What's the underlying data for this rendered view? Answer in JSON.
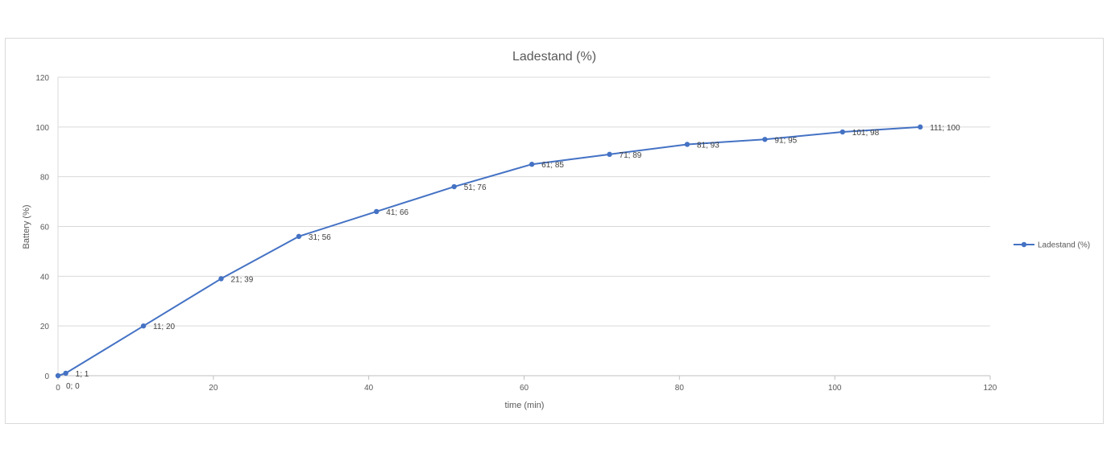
{
  "chart_data": {
    "type": "line",
    "title": "Ladestand (%)",
    "xlabel": "time (min)",
    "ylabel": "Battery (%)",
    "xlim": [
      0,
      120
    ],
    "ylim": [
      0,
      120
    ],
    "xticks": [
      0,
      20,
      40,
      60,
      80,
      100,
      120
    ],
    "yticks": [
      0,
      20,
      40,
      60,
      80,
      100,
      120
    ],
    "grid": "horizontal",
    "legend": "right",
    "series": [
      {
        "name": "Ladestand (%)",
        "color": "#4472c4",
        "x": [
          0,
          1,
          11,
          21,
          31,
          41,
          51,
          61,
          71,
          81,
          91,
          101,
          111
        ],
        "y": [
          0,
          1,
          20,
          39,
          56,
          66,
          76,
          85,
          89,
          93,
          95,
          98,
          100
        ],
        "data_labels": [
          "0; 0",
          "1; 1",
          "11; 20",
          "21; 39",
          "31; 56",
          "41; 66",
          "51; 76",
          "61; 85",
          "71; 89",
          "81; 93",
          "91; 95",
          "101; 98",
          "111; 100"
        ]
      }
    ]
  }
}
